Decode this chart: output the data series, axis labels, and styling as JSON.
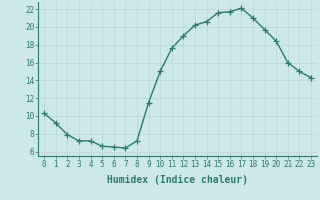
{
  "x": [
    0,
    1,
    2,
    3,
    4,
    5,
    6,
    7,
    8,
    9,
    10,
    11,
    12,
    13,
    14,
    15,
    16,
    17,
    18,
    19,
    20,
    21,
    22,
    23
  ],
  "y": [
    10.3,
    9.2,
    7.9,
    7.2,
    7.2,
    6.6,
    6.5,
    6.4,
    7.2,
    11.5,
    15.0,
    17.6,
    19.0,
    20.2,
    20.6,
    21.6,
    21.7,
    22.1,
    21.0,
    19.7,
    18.4,
    16.0,
    15.0,
    14.3
  ],
  "line_color": "#2d7a6e",
  "marker": "+",
  "marker_size": 4,
  "line_width": 1.0,
  "background_color": "#cde8e8",
  "grid_color": "#b8d4d4",
  "xlabel": "Humidex (Indice chaleur)",
  "xlabel_fontsize": 7,
  "xlim": [
    -0.5,
    23.5
  ],
  "ylim": [
    5.5,
    22.8
  ],
  "yticks": [
    6,
    8,
    10,
    12,
    14,
    16,
    18,
    20,
    22
  ],
  "xticks": [
    0,
    1,
    2,
    3,
    4,
    5,
    6,
    7,
    8,
    9,
    10,
    11,
    12,
    13,
    14,
    15,
    16,
    17,
    18,
    19,
    20,
    21,
    22,
    23
  ],
  "tick_fontsize": 5.5,
  "tick_color": "#2d7a6e"
}
